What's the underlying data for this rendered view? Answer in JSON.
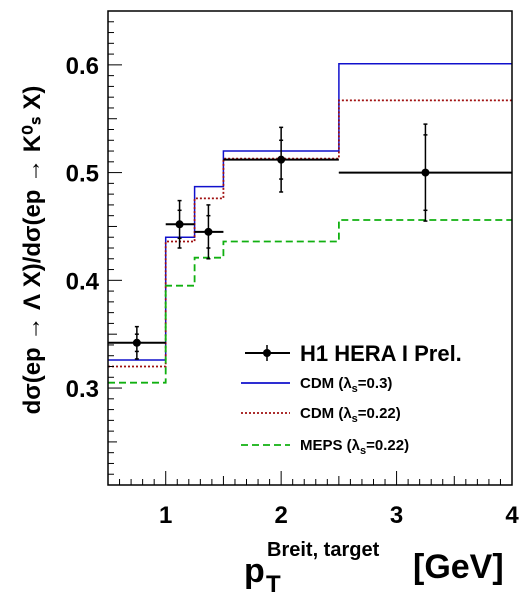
{
  "chart_data": {
    "type": "line",
    "title": "",
    "xlabel": {
      "main": "p",
      "sub": "T",
      "sup": "Breit, target",
      "unit": "[GeV]"
    },
    "ylabel": "dσ(ep → Λ X)/dσ(ep → K⁰ₛ X)",
    "xlim": [
      0.5,
      4.0
    ],
    "ylim": [
      0.21,
      0.65
    ],
    "xticks": [
      "1",
      "2",
      "3",
      "4"
    ],
    "yticks": [
      "0.3",
      "0.4",
      "0.5",
      "0.6"
    ],
    "grid": false,
    "legend_position": "lower-right",
    "series": [
      {
        "name": "H1 HERA I Prel.",
        "style": "points",
        "color": "#000000",
        "points": [
          {
            "x": 0.75,
            "xlo": 0.5,
            "xhi": 1.0,
            "y": 0.342,
            "err_stat": 0.008,
            "err_tot": 0.015
          },
          {
            "x": 1.12,
            "xlo": 1.0,
            "xhi": 1.25,
            "y": 0.452,
            "err_stat": 0.013,
            "err_tot": 0.022
          },
          {
            "x": 1.37,
            "xlo": 1.25,
            "xhi": 1.5,
            "y": 0.445,
            "err_stat": 0.015,
            "err_tot": 0.025
          },
          {
            "x": 2.0,
            "xlo": 1.5,
            "xhi": 2.5,
            "y": 0.512,
            "err_stat": 0.018,
            "err_tot": 0.03
          },
          {
            "x": 3.25,
            "xlo": 2.5,
            "xhi": 4.0,
            "y": 0.5,
            "err_stat": 0.035,
            "err_tot": 0.045
          }
        ]
      },
      {
        "name": "CDM (λs=0.3)",
        "label_main": "CDM (λ",
        "label_sub": "s",
        "label_tail": "=0.3)",
        "style": "step",
        "color": "#1010cc",
        "dash": "",
        "bins": [
          [
            0.5,
            1.0,
            0.326
          ],
          [
            1.0,
            1.12,
            0.44
          ],
          [
            1.12,
            1.25,
            0.44
          ],
          [
            1.25,
            1.5,
            0.487
          ],
          [
            1.5,
            2.5,
            0.52
          ],
          [
            2.5,
            4.0,
            0.601
          ]
        ]
      },
      {
        "name": "CDM (λs=0.22)",
        "label_main": "CDM (λ",
        "label_sub": "s",
        "label_tail": "=0.22)",
        "style": "step",
        "color": "#a01010",
        "dash": "2,2",
        "bins": [
          [
            0.5,
            1.0,
            0.32
          ],
          [
            1.0,
            1.12,
            0.436
          ],
          [
            1.12,
            1.25,
            0.436
          ],
          [
            1.25,
            1.5,
            0.476
          ],
          [
            1.5,
            2.5,
            0.513
          ],
          [
            2.5,
            4.0,
            0.567
          ]
        ]
      },
      {
        "name": "MEPS (λs=0.22)",
        "label_main": "MEPS (λ",
        "label_sub": "s",
        "label_tail": "=0.22)",
        "style": "step",
        "color": "#10b010",
        "dash": "7,4",
        "bins": [
          [
            0.5,
            1.0,
            0.305
          ],
          [
            1.0,
            1.25,
            0.395
          ],
          [
            1.25,
            1.5,
            0.421
          ],
          [
            1.5,
            2.5,
            0.436
          ],
          [
            2.5,
            4.0,
            0.456
          ]
        ]
      }
    ],
    "reference_line": {
      "from_x": 2.5,
      "to_x": 4.0,
      "y": 0.5,
      "color": "#000000"
    }
  }
}
